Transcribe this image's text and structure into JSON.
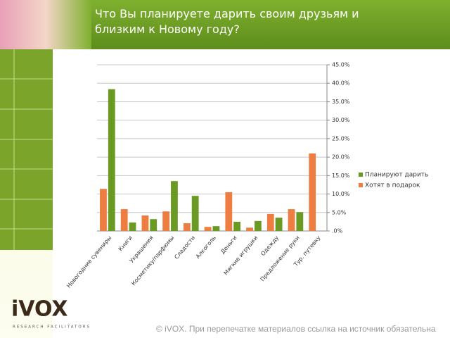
{
  "chart_data": {
    "type": "bar",
    "title": "Что Вы планируете дарить своим друзьям и близким к Новому году?",
    "categories": [
      "Новогодние сувениры",
      "Книги",
      "Украшения",
      "Косметику/парфюмы",
      "Сладости",
      "Алкоголь",
      "Деньги",
      "Мягкие игрушки",
      "Одежду",
      "Предложение руки",
      "Тур. путевку"
    ],
    "series": [
      {
        "name": "Планируют дарить",
        "color": "#6b9a23",
        "values": [
          38.4,
          2.3,
          3.2,
          13.5,
          9.5,
          1.3,
          2.5,
          2.7,
          3.6,
          5.1,
          null
        ]
      },
      {
        "name": "Хотят в подарок",
        "color": "#ee7d42",
        "values": [
          11.4,
          5.9,
          4.2,
          5.3,
          2.1,
          1.1,
          10.5,
          0.9,
          4.6,
          5.9,
          21.0
        ]
      }
    ],
    "ylim": [
      0,
      45
    ],
    "yticks": [
      {
        "value": 0,
        "label": ".0%"
      },
      {
        "value": 5,
        "label": "5.0%"
      },
      {
        "value": 10,
        "label": "10.0%"
      },
      {
        "value": 15,
        "label": "15.0%"
      },
      {
        "value": 20,
        "label": "20.0%"
      },
      {
        "value": 25,
        "label": "25.0%"
      },
      {
        "value": 30,
        "label": "30.0%"
      },
      {
        "value": 35,
        "label": "35.0%"
      },
      {
        "value": 40,
        "label": "40.0%"
      },
      {
        "value": 45,
        "label": "45.0%"
      }
    ],
    "grid": true,
    "legend": "right"
  },
  "logo": {
    "name": "iVOX",
    "tagline": "RESEARCH FACILITATORS"
  },
  "footer": "© iVOX. При перепечатке материалов ссылка на источник обязательна"
}
